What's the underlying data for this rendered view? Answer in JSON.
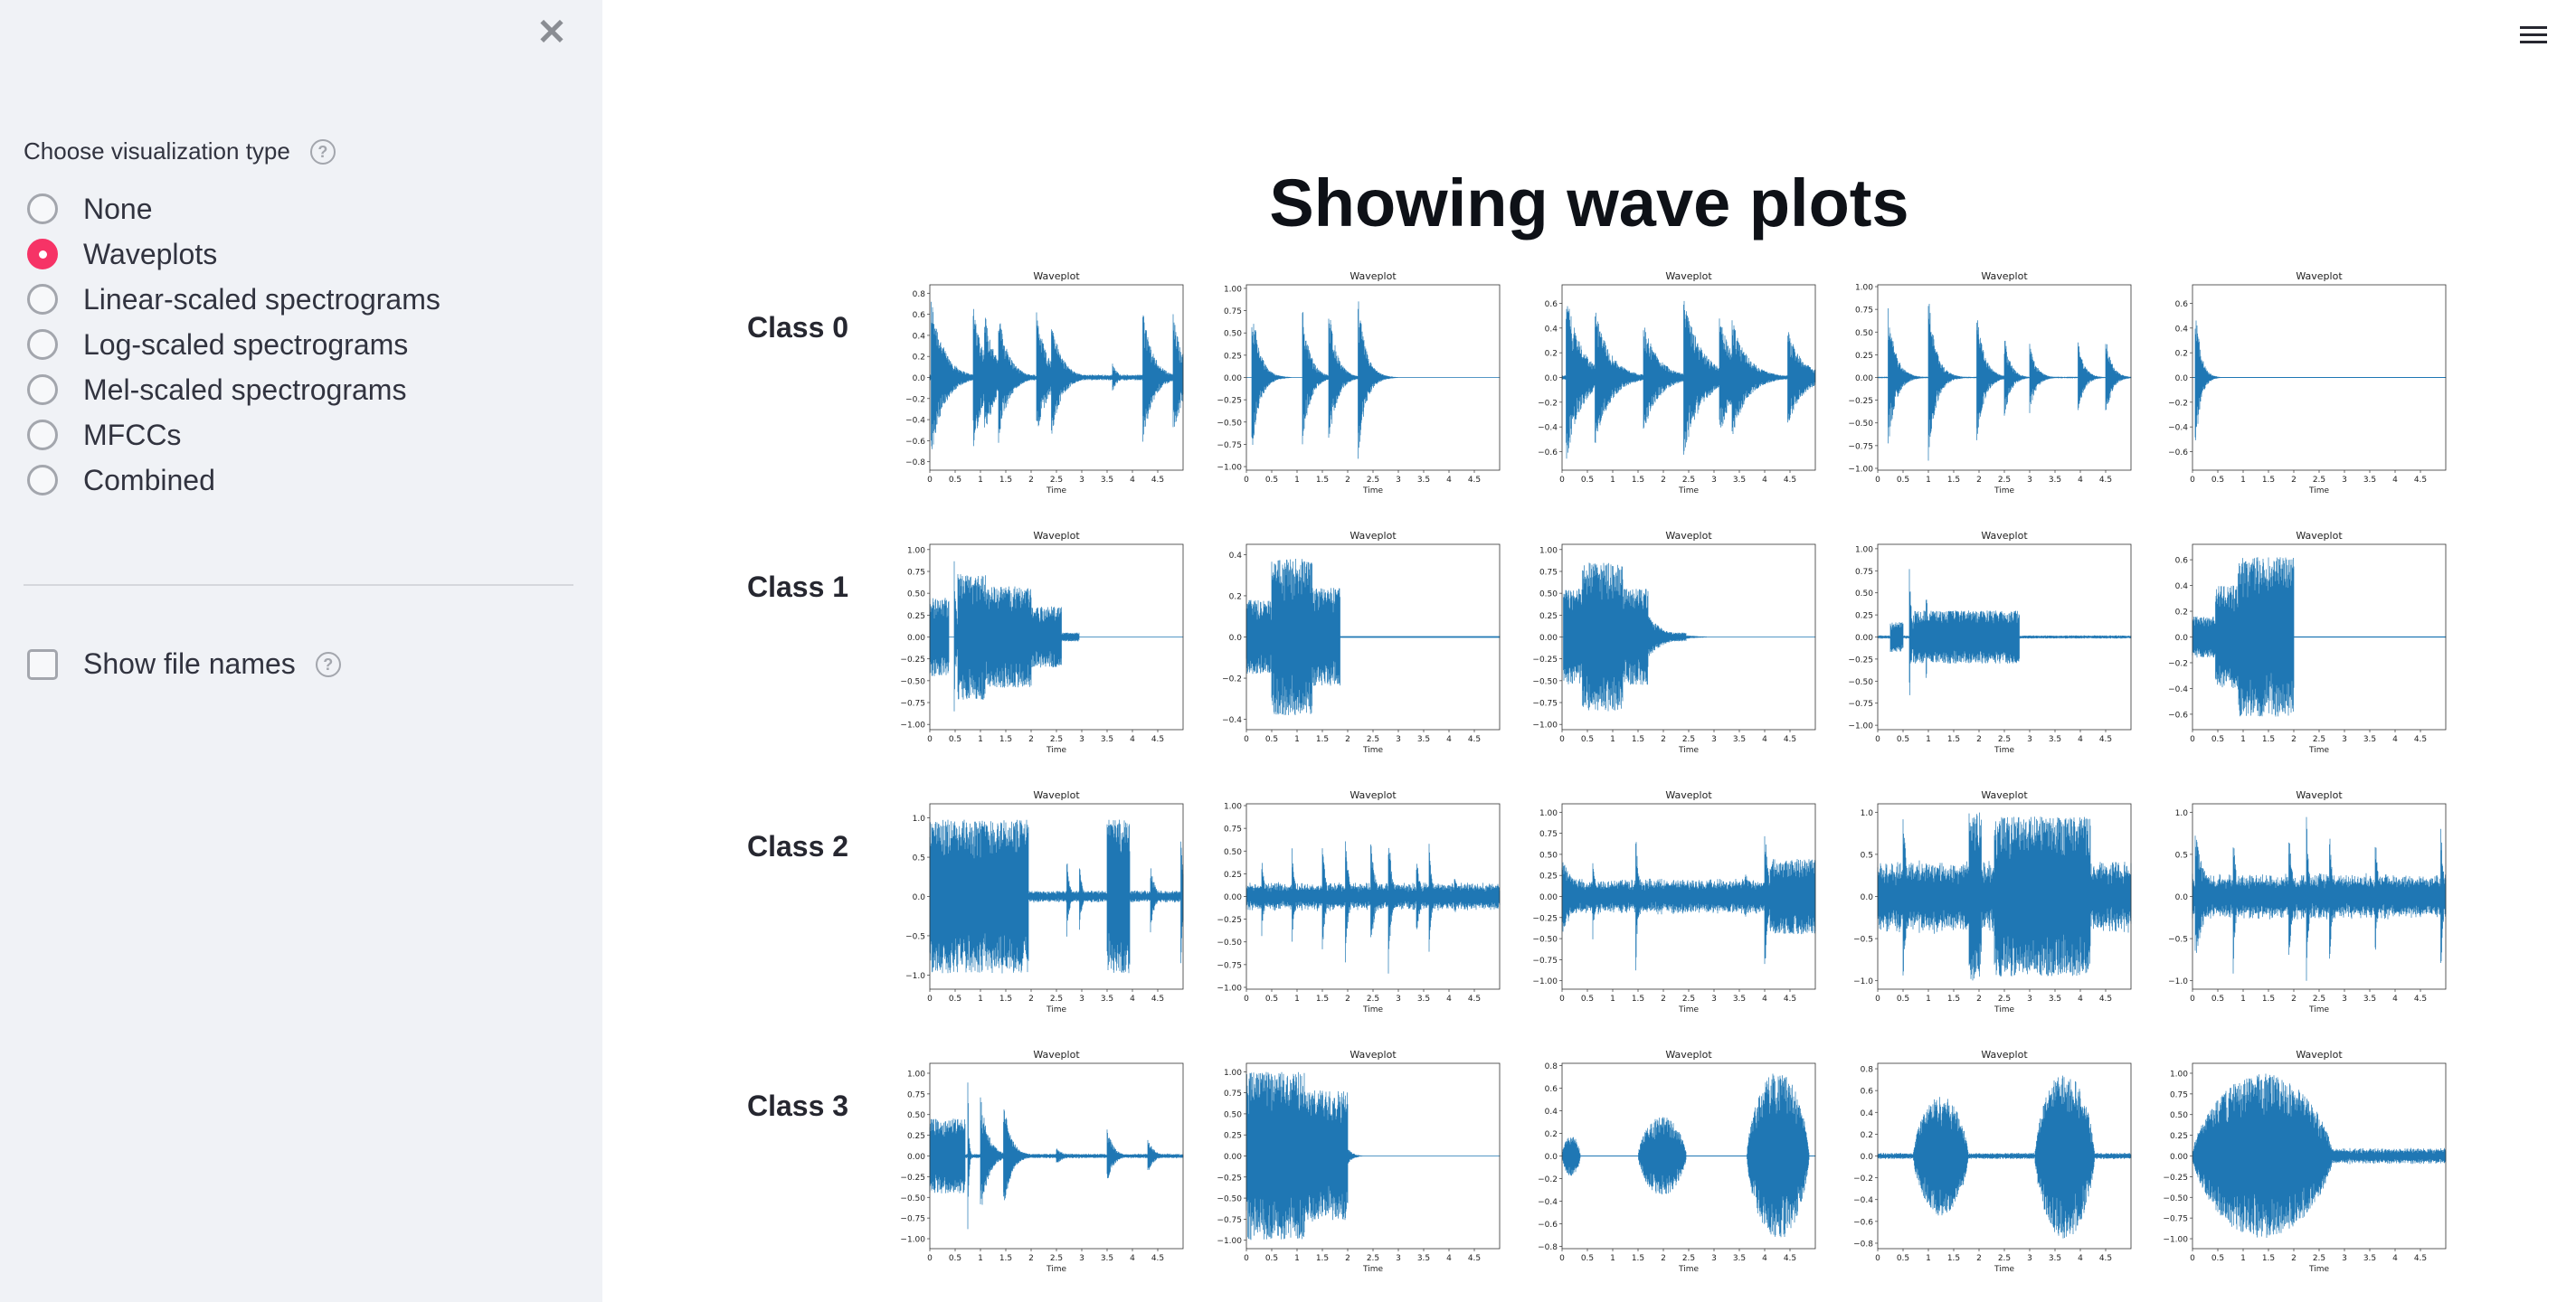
{
  "sidebar": {
    "close_icon": "close-icon",
    "viz_label": "Choose visualization type",
    "help_glyph": "?",
    "options": [
      "None",
      "Waveplots",
      "Linear-scaled spectrograms",
      "Log-scaled spectrograms",
      "Mel-scaled spectrograms",
      "MFCCs",
      "Combined"
    ],
    "selected_index": 1,
    "show_file_names_label": "Show file names",
    "show_file_names_checked": false
  },
  "header": {
    "menu_icon": "hamburger-icon"
  },
  "main": {
    "title": "Showing wave plots"
  },
  "colors": {
    "accent": "#f63366",
    "wave": "#1f77b4",
    "sidebar_bg": "#f0f2f6"
  },
  "chart_data": {
    "type": "line",
    "plot_title": "Waveplot",
    "xlabel": "Time",
    "xticks": [
      "0",
      "0.5",
      "1",
      "1.5",
      "2",
      "2.5",
      "3",
      "3.5",
      "4",
      "4.5"
    ],
    "xlim": [
      0,
      5.0
    ],
    "rows": [
      {
        "label": "Class 0",
        "plots": [
          {
            "ylim": 0.88,
            "yticks": [
              -0.8,
              -0.6,
              -0.4,
              -0.2,
              0,
              0.2,
              0.4,
              0.6,
              0.8
            ],
            "ydec": 1,
            "noise": 0.03,
            "events": [
              [
                "d",
                0.02,
                0.8,
                0.25
              ],
              [
                "d",
                0.85,
                0.75,
                0.2
              ],
              [
                "d",
                1.08,
                0.65,
                0.2
              ],
              [
                "d",
                1.35,
                0.65,
                0.2
              ],
              [
                "d",
                1.7,
                0.1,
                0.1
              ],
              [
                "d",
                2.1,
                0.67,
                0.2
              ],
              [
                "d",
                2.4,
                0.57,
                0.2
              ],
              [
                "d",
                3.6,
                0.15,
                0.1
              ],
              [
                "d",
                4.2,
                0.66,
                0.2
              ],
              [
                "d",
                4.8,
                0.62,
                0.2
              ]
            ]
          },
          {
            "ylim": 1.04,
            "yticks": [
              -1,
              -0.75,
              -0.5,
              -0.25,
              0,
              0.25,
              0.5,
              0.75,
              1
            ],
            "ydec": 2,
            "noise": 0.0,
            "events": [
              [
                "d",
                0.1,
                0.93,
                0.15
              ],
              [
                "d",
                1.1,
                0.82,
                0.15
              ],
              [
                "d",
                1.62,
                0.87,
                0.15
              ],
              [
                "d",
                2.2,
                0.95,
                0.15
              ]
            ]
          },
          {
            "ylim": 0.75,
            "yticks": [
              -0.6,
              -0.4,
              -0.2,
              0,
              0.2,
              0.4,
              0.6
            ],
            "ydec": 1,
            "noise": 0.02,
            "events": [
              [
                "d",
                0.08,
                0.69,
                0.3
              ],
              [
                "d",
                0.65,
                0.56,
                0.3
              ],
              [
                "d",
                1.6,
                0.46,
                0.3
              ],
              [
                "d",
                2.4,
                0.65,
                0.35
              ],
              [
                "d",
                3.1,
                0.5,
                0.3
              ],
              [
                "d",
                3.35,
                0.5,
                0.3
              ],
              [
                "d",
                4.45,
                0.4,
                0.3
              ]
            ]
          },
          {
            "ylim": 1.02,
            "yticks": [
              -1,
              -0.75,
              -0.5,
              -0.25,
              0,
              0.25,
              0.5,
              0.75,
              1
            ],
            "ydec": 2,
            "noise": 0.01,
            "events": [
              [
                "d",
                0.2,
                0.81,
                0.15
              ],
              [
                "d",
                1.0,
                0.92,
                0.15
              ],
              [
                "d",
                1.95,
                0.74,
                0.15
              ],
              [
                "d",
                2.5,
                0.47,
                0.12
              ],
              [
                "d",
                3.0,
                0.42,
                0.12
              ],
              [
                "d",
                3.95,
                0.42,
                0.12
              ],
              [
                "d",
                4.5,
                0.47,
                0.12
              ]
            ]
          },
          {
            "ylim": 0.75,
            "yticks": [
              -0.6,
              -0.4,
              -0.2,
              0,
              0.2,
              0.4,
              0.6
            ],
            "ydec": 1,
            "noise": 0.0,
            "events": [
              [
                "d",
                0.05,
                0.68,
                0.1
              ]
            ]
          }
        ]
      },
      {
        "label": "Class 1",
        "plots": [
          {
            "ylim": 1.06,
            "yticks": [
              -1,
              -0.75,
              -0.5,
              -0.25,
              0,
              0.25,
              0.5,
              0.75,
              1
            ],
            "ydec": 2,
            "noise": 0.0,
            "events": [
              [
                "b",
                0.0,
                0.38,
                0.45
              ],
              [
                "d",
                0.48,
                0.96,
                0.04
              ],
              [
                "b",
                0.55,
                1.1,
                0.72
              ],
              [
                "b",
                1.1,
                2.0,
                0.58
              ],
              [
                "b",
                2.0,
                2.6,
                0.35
              ],
              [
                "b",
                2.6,
                2.95,
                0.05
              ]
            ]
          },
          {
            "ylim": 0.45,
            "yticks": [
              -0.4,
              -0.2,
              0,
              0.2,
              0.4
            ],
            "ydec": 1,
            "noise": 0.0,
            "events": [
              [
                "b",
                0.0,
                0.5,
                0.18
              ],
              [
                "b",
                0.5,
                1.3,
                0.38
              ],
              [
                "b",
                1.3,
                1.85,
                0.24
              ]
            ]
          },
          {
            "ylim": 1.06,
            "yticks": [
              -1,
              -0.75,
              -0.5,
              -0.25,
              0,
              0.25,
              0.5,
              0.75,
              1
            ],
            "ydec": 2,
            "noise": 0.0,
            "events": [
              [
                "b",
                0.02,
                0.4,
                0.55
              ],
              [
                "b",
                0.4,
                1.2,
                0.85
              ],
              [
                "b",
                1.2,
                1.7,
                0.55
              ],
              [
                "d",
                1.7,
                0.25,
                0.3
              ],
              [
                "b",
                1.9,
                2.45,
                0.05
              ]
            ]
          },
          {
            "ylim": 1.05,
            "yticks": [
              -1,
              -0.75,
              -0.5,
              -0.25,
              0,
              0.25,
              0.5,
              0.75,
              1
            ],
            "ydec": 2,
            "noise": 0.02,
            "events": [
              [
                "b",
                0.25,
                0.5,
                0.17
              ],
              [
                "d",
                0.62,
                0.97,
                0.04
              ],
              [
                "d",
                0.95,
                0.85,
                0.03
              ],
              [
                "b",
                0.7,
                2.8,
                0.3
              ]
            ]
          },
          {
            "ylim": 0.72,
            "yticks": [
              -0.6,
              -0.4,
              -0.2,
              0,
              0.2,
              0.4,
              0.6
            ],
            "ydec": 1,
            "noise": 0.0,
            "events": [
              [
                "b",
                0.0,
                0.45,
                0.16
              ],
              [
                "b",
                0.45,
                0.9,
                0.4
              ],
              [
                "b",
                0.9,
                2.0,
                0.62
              ]
            ]
          }
        ]
      },
      {
        "label": "Class 2",
        "plots": [
          {
            "ylim": 1.18,
            "yticks": [
              -1,
              -0.5,
              0,
              0.5,
              1
            ],
            "ydec": 1,
            "noise": 0.08,
            "events": [
              [
                "b",
                0.0,
                1.95,
                0.98
              ],
              [
                "d",
                2.7,
                0.6,
                0.05
              ],
              [
                "d",
                2.95,
                0.5,
                0.05
              ],
              [
                "b",
                3.5,
                3.95,
                0.98
              ],
              [
                "d",
                4.35,
                0.5,
                0.08
              ],
              [
                "d",
                4.95,
                0.95,
                0.05
              ]
            ]
          },
          {
            "ylim": 1.02,
            "yticks": [
              -1,
              -0.75,
              -0.5,
              -0.25,
              0,
              0.25,
              0.5,
              0.75,
              1
            ],
            "ydec": 2,
            "noise": 0.16,
            "events": [
              [
                "d",
                0.3,
                0.5,
                0.05
              ],
              [
                "d",
                0.9,
                0.55,
                0.05
              ],
              [
                "d",
                1.5,
                0.65,
                0.06
              ],
              [
                "d",
                1.95,
                0.8,
                0.06
              ],
              [
                "d",
                2.45,
                0.7,
                0.08
              ],
              [
                "d",
                2.8,
                0.93,
                0.06
              ],
              [
                "d",
                3.35,
                0.5,
                0.08
              ],
              [
                "d",
                3.6,
                0.75,
                0.05
              ],
              [
                "d",
                4.1,
                0.25,
                0.1
              ]
            ]
          },
          {
            "ylim": 1.1,
            "yticks": [
              -1,
              -0.75,
              -0.5,
              -0.25,
              0,
              0.25,
              0.5,
              0.75,
              1
            ],
            "ydec": 2,
            "noise": 0.22,
            "events": [
              [
                "d",
                0.0,
                0.45,
                0.3
              ],
              [
                "d",
                0.6,
                0.6,
                0.05
              ],
              [
                "d",
                1.45,
                1.0,
                0.05
              ],
              [
                "d",
                2.7,
                0.2,
                0.2
              ],
              [
                "d",
                3.6,
                0.3,
                0.2
              ],
              [
                "d",
                4.0,
                1.0,
                0.06
              ],
              [
                "b",
                4.1,
                5.0,
                0.45
              ]
            ]
          },
          {
            "ylim": 1.1,
            "yticks": [
              -1,
              -0.5,
              0,
              0.5,
              1
            ],
            "ydec": 1,
            "noise": 0.45,
            "events": [
              [
                "d",
                0.5,
                1.0,
                0.08
              ],
              [
                "b",
                1.8,
                2.05,
                1.0
              ],
              [
                "b",
                2.3,
                4.2,
                0.95
              ]
            ]
          },
          {
            "ylim": 1.1,
            "yticks": [
              -1,
              -0.5,
              0,
              0.5,
              1
            ],
            "ydec": 1,
            "noise": 0.28,
            "events": [
              [
                "d",
                0.8,
                1.0,
                0.05
              ],
              [
                "d",
                1.9,
                1.0,
                0.06
              ],
              [
                "d",
                2.25,
                1.0,
                0.05
              ],
              [
                "d",
                2.7,
                1.0,
                0.05
              ],
              [
                "d",
                3.6,
                1.0,
                0.05
              ],
              [
                "d",
                4.9,
                1.0,
                0.05
              ],
              [
                "d",
                0.05,
                0.8,
                0.2
              ]
            ]
          }
        ]
      },
      {
        "label": "Class 3",
        "plots": [
          {
            "ylim": 1.12,
            "yticks": [
              -1,
              -0.75,
              -0.5,
              -0.25,
              0,
              0.25,
              0.5,
              0.75,
              1
            ],
            "ydec": 2,
            "noise": 0.03,
            "events": [
              [
                "b",
                0.0,
                0.7,
                0.45
              ],
              [
                "d",
                0.75,
                1.0,
                0.02
              ],
              [
                "d",
                1.0,
                0.78,
                0.15
              ],
              [
                "d",
                1.45,
                0.7,
                0.15
              ],
              [
                "d",
                2.5,
                0.1,
                0.15
              ],
              [
                "d",
                3.5,
                0.35,
                0.12
              ],
              [
                "d",
                4.3,
                0.22,
                0.12
              ]
            ]
          },
          {
            "ylim": 1.1,
            "yticks": [
              -1,
              -0.75,
              -0.5,
              -0.25,
              0,
              0.25,
              0.5,
              0.75,
              1
            ],
            "ydec": 2,
            "noise": 0.0,
            "events": [
              [
                "b",
                0.0,
                1.15,
                1.0
              ],
              [
                "b",
                1.15,
                2.0,
                0.78
              ],
              [
                "d",
                2.0,
                0.1,
                0.1
              ]
            ]
          },
          {
            "ylim": 0.82,
            "yticks": [
              -0.8,
              -0.6,
              -0.4,
              -0.2,
              0,
              0.2,
              0.4,
              0.6,
              0.8
            ],
            "ydec": 1,
            "noise": 0.0,
            "events": [
              [
                "s",
                0.0,
                0.4,
                0.18
              ],
              [
                "s",
                1.5,
                2.55,
                0.35
              ],
              [
                "s",
                3.65,
                5.0,
                0.75
              ]
            ]
          },
          {
            "ylim": 0.85,
            "yticks": [
              -0.8,
              -0.6,
              -0.4,
              -0.2,
              0,
              0.2,
              0.4,
              0.6,
              0.8
            ],
            "ydec": 1,
            "noise": 0.03,
            "events": [
              [
                "s",
                0.7,
                1.9,
                0.55
              ],
              [
                "s",
                3.1,
                4.4,
                0.77
              ]
            ]
          },
          {
            "ylim": 1.12,
            "yticks": [
              -1,
              -0.75,
              -0.5,
              -0.25,
              0,
              0.25,
              0.5,
              0.75,
              1
            ],
            "ydec": 2,
            "noise": 0.1,
            "events": [
              [
                "s",
                0.0,
                3.05,
                1.0
              ]
            ]
          }
        ]
      }
    ]
  }
}
